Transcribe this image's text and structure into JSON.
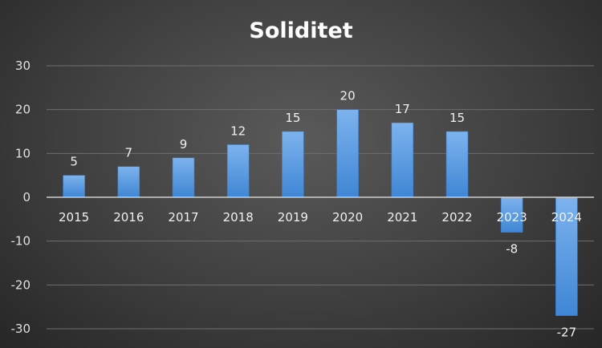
{
  "chart_data": {
    "type": "bar",
    "title": "Soliditet",
    "xlabel": "",
    "ylabel": "",
    "categories": [
      "2015",
      "2016",
      "2017",
      "2018",
      "2019",
      "2020",
      "2021",
      "2022",
      "2023",
      "2024"
    ],
    "values": [
      5,
      7,
      9,
      12,
      15,
      20,
      17,
      15,
      -8,
      -27
    ],
    "data_labels": [
      "5",
      "7",
      "9",
      "12",
      "15",
      "20",
      "17",
      "15",
      "-8",
      "-27"
    ],
    "ylim": [
      -30,
      30
    ],
    "yticks": [
      30,
      20,
      10,
      0,
      -10,
      -20,
      -30
    ],
    "grid": true,
    "legend": "none",
    "bar_color": "#4a90d9"
  }
}
